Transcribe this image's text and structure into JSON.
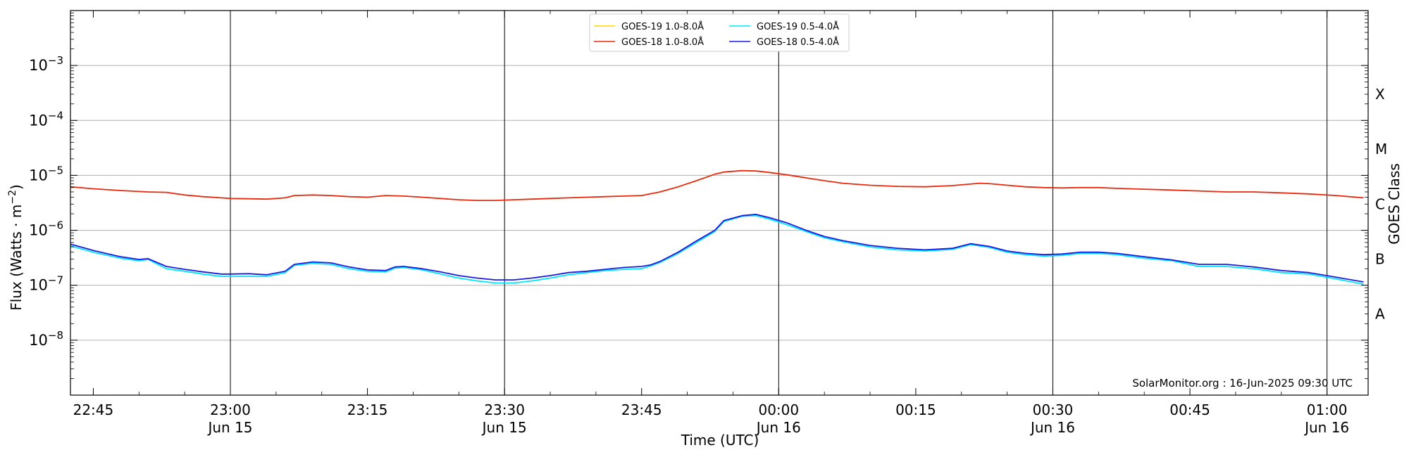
{
  "chart_data": {
    "type": "line",
    "title": "",
    "xlabel": "Time (UTC)",
    "ylabel": "Flux (Watts · m",
    "ylabel_sup": "−2",
    "ylabel_close": ")",
    "y2label": "GOES Class",
    "yscale": "log",
    "ylim": [
      1e-09,
      0.01
    ],
    "xlim_minutes": [
      -17.5,
      124.5
    ],
    "grid": "horizontal",
    "legend_position": "top-center",
    "watermark": "SolarMonitor.org : 16-Jun-2025 09:30 UTC",
    "y_ticks": [
      {
        "exp": "−3",
        "value": 0.001
      },
      {
        "exp": "−4",
        "value": 0.0001
      },
      {
        "exp": "−5",
        "value": 1e-05
      },
      {
        "exp": "−6",
        "value": 1e-06
      },
      {
        "exp": "−7",
        "value": 1e-07
      },
      {
        "exp": "−8",
        "value": 1e-08
      }
    ],
    "y_tick_base": "10",
    "class_labels": [
      {
        "label": "X",
        "value": 0.0003
      },
      {
        "label": "M",
        "value": 3e-05
      },
      {
        "label": "C",
        "value": 3e-06
      },
      {
        "label": "B",
        "value": 3e-07
      },
      {
        "label": "A",
        "value": 3e-08
      }
    ],
    "x_ticks": [
      {
        "t": -15,
        "line1": "22:45",
        "line2": ""
      },
      {
        "t": 0,
        "line1": "23:00",
        "line2": "Jun 15"
      },
      {
        "t": 15,
        "line1": "23:15",
        "line2": ""
      },
      {
        "t": 30,
        "line1": "23:30",
        "line2": "Jun 15"
      },
      {
        "t": 45,
        "line1": "23:45",
        "line2": ""
      },
      {
        "t": 60,
        "line1": "00:00",
        "line2": "Jun 16"
      },
      {
        "t": 75,
        "line1": "00:15",
        "line2": ""
      },
      {
        "t": 90,
        "line1": "00:30",
        "line2": "Jun 16"
      },
      {
        "t": 105,
        "line1": "00:45",
        "line2": ""
      },
      {
        "t": 120,
        "line1": "01:00",
        "line2": "Jun 16"
      }
    ],
    "vertical_lines": [
      0,
      30,
      60,
      90,
      120
    ],
    "x_minutes_from": "23:00 Jun 15",
    "series": [
      {
        "name": "GOES-19 1.0-8.0Å",
        "color": "#FFD700",
        "x": [],
        "y": []
      },
      {
        "name": "GOES-18 1.0-8.0Å",
        "color": "#E8290B",
        "x": [
          -17.5,
          -15,
          -12,
          -9,
          -7,
          -5,
          -3,
          -1,
          0,
          2,
          4,
          6,
          7,
          9,
          11,
          13,
          15,
          17,
          19,
          21,
          23,
          25,
          27,
          29,
          31,
          33,
          35,
          37,
          39,
          41,
          43,
          45,
          47,
          49,
          51,
          53,
          54,
          56,
          57.5,
          59,
          61,
          63,
          65,
          67,
          70,
          73,
          76,
          79,
          82,
          83,
          85,
          87,
          89,
          91,
          93,
          95,
          97,
          100,
          103,
          106,
          109,
          112,
          115,
          118,
          121,
          124
        ],
        "y": [
          6.2e-06,
          5.7e-06,
          5.3e-06,
          5e-06,
          4.9e-06,
          4.4e-06,
          4.1e-06,
          3.9e-06,
          3.8e-06,
          3.75e-06,
          3.7e-06,
          3.9e-06,
          4.3e-06,
          4.4e-06,
          4.3e-06,
          4.1e-06,
          4e-06,
          4.3e-06,
          4.2e-06,
          4e-06,
          3.8e-06,
          3.6e-06,
          3.5e-06,
          3.5e-06,
          3.6e-06,
          3.7e-06,
          3.8e-06,
          3.9e-06,
          4e-06,
          4.1e-06,
          4.2e-06,
          4.3e-06,
          5e-06,
          6.2e-06,
          8e-06,
          1.05e-05,
          1.15e-05,
          1.22e-05,
          1.2e-05,
          1.13e-05,
          1.02e-05,
          9e-06,
          8e-06,
          7.2e-06,
          6.6e-06,
          6.3e-06,
          6.2e-06,
          6.5e-06,
          7.2e-06,
          7.1e-06,
          6.6e-06,
          6.2e-06,
          6e-06,
          5.9e-06,
          6e-06,
          6e-06,
          5.8e-06,
          5.6e-06,
          5.4e-06,
          5.2e-06,
          5e-06,
          5e-06,
          4.8e-06,
          4.6e-06,
          4.3e-06,
          3.9e-06
        ]
      },
      {
        "name": "GOES-19 0.5-4.0Å",
        "color": "#00E5FF",
        "x": [
          -17.5,
          -15,
          -12,
          -10,
          -9,
          -7,
          -5,
          -3,
          -1,
          0,
          2,
          4,
          6,
          7,
          9,
          11,
          13,
          15,
          17,
          18,
          19,
          21,
          23,
          25,
          27,
          29,
          31,
          33,
          35,
          37,
          39,
          41,
          43,
          45,
          46,
          47,
          49,
          51,
          53,
          54,
          56,
          57.5,
          59,
          61,
          63,
          65,
          67,
          70,
          73,
          76,
          79,
          81,
          83,
          85,
          87,
          89,
          91,
          93,
          95,
          97,
          100,
          103,
          106,
          109,
          112,
          115,
          118,
          121,
          124
        ],
        "y": [
          5.2e-07,
          4e-07,
          3.1e-07,
          2.8e-07,
          2.95e-07,
          2e-07,
          1.8e-07,
          1.6e-07,
          1.45e-07,
          1.45e-07,
          1.45e-07,
          1.45e-07,
          1.7e-07,
          2.3e-07,
          2.5e-07,
          2.4e-07,
          2e-07,
          1.8e-07,
          1.75e-07,
          2.05e-07,
          2.1e-07,
          1.9e-07,
          1.6e-07,
          1.35e-07,
          1.2e-07,
          1.1e-07,
          1.1e-07,
          1.2e-07,
          1.35e-07,
          1.55e-07,
          1.7e-07,
          1.85e-07,
          1.95e-07,
          2e-07,
          2.25e-07,
          2.6e-07,
          3.8e-07,
          6e-07,
          9.5e-07,
          1.45e-06,
          1.8e-06,
          1.85e-06,
          1.6e-06,
          1.25e-06,
          9.5e-07,
          7.3e-07,
          6.2e-07,
          5e-07,
          4.4e-07,
          4.2e-07,
          4.5e-07,
          5.5e-07,
          4.9e-07,
          4e-07,
          3.6e-07,
          3.4e-07,
          3.5e-07,
          3.8e-07,
          3.8e-07,
          3.6e-07,
          3.1e-07,
          2.8e-07,
          2.2e-07,
          2.2e-07,
          2e-07,
          1.7e-07,
          1.6e-07,
          1.3e-07,
          1.05e-07
        ]
      },
      {
        "name": "GOES-18 0.5-4.0Å",
        "color": "#1A1AE6",
        "x": [
          -17.5,
          -15,
          -12,
          -10,
          -9,
          -7,
          -5,
          -3,
          -1,
          0,
          2,
          4,
          6,
          7,
          9,
          11,
          13,
          15,
          17,
          18,
          19,
          21,
          23,
          25,
          27,
          29,
          31,
          33,
          35,
          37,
          39,
          41,
          43,
          45,
          46,
          47,
          49,
          51,
          53,
          54,
          56,
          57.5,
          59,
          61,
          63,
          65,
          67,
          70,
          73,
          76,
          79,
          81,
          83,
          85,
          87,
          89,
          91,
          93,
          95,
          97,
          100,
          103,
          106,
          109,
          112,
          115,
          118,
          121,
          124
        ],
        "y": [
          5.6e-07,
          4.3e-07,
          3.3e-07,
          2.95e-07,
          3.05e-07,
          2.2e-07,
          1.95e-07,
          1.75e-07,
          1.6e-07,
          1.6e-07,
          1.62e-07,
          1.55e-07,
          1.8e-07,
          2.4e-07,
          2.65e-07,
          2.55e-07,
          2.15e-07,
          1.9e-07,
          1.85e-07,
          2.15e-07,
          2.2e-07,
          2e-07,
          1.75e-07,
          1.5e-07,
          1.35e-07,
          1.25e-07,
          1.25e-07,
          1.35e-07,
          1.5e-07,
          1.7e-07,
          1.8e-07,
          1.95e-07,
          2.1e-07,
          2.2e-07,
          2.35e-07,
          2.7e-07,
          4e-07,
          6.4e-07,
          1e-06,
          1.5e-06,
          1.85e-06,
          1.95e-06,
          1.7e-06,
          1.35e-06,
          1e-06,
          7.7e-07,
          6.5e-07,
          5.3e-07,
          4.7e-07,
          4.4e-07,
          4.7e-07,
          5.7e-07,
          5.1e-07,
          4.2e-07,
          3.8e-07,
          3.6e-07,
          3.7e-07,
          4e-07,
          4e-07,
          3.8e-07,
          3.3e-07,
          2.9e-07,
          2.4e-07,
          2.4e-07,
          2.15e-07,
          1.85e-07,
          1.7e-07,
          1.4e-07,
          1.15e-07
        ]
      }
    ]
  }
}
